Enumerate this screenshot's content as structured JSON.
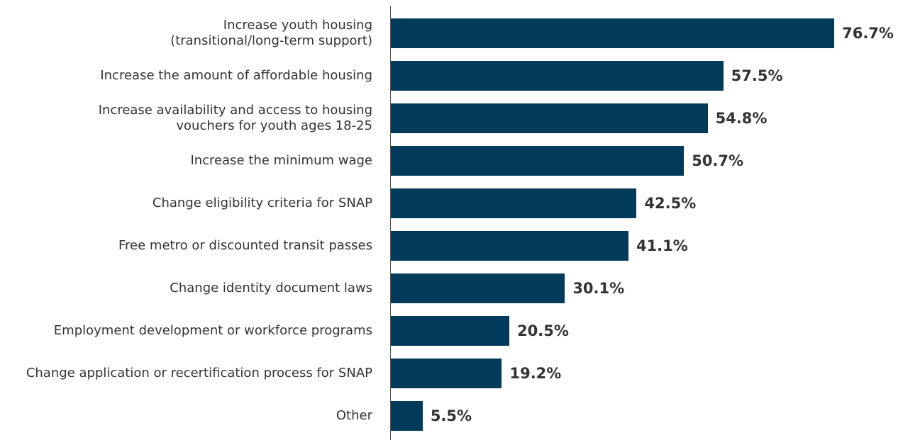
{
  "chart_data": {
    "type": "bar",
    "orientation": "horizontal",
    "color": "#023a5c",
    "categories": [
      "Increase youth housing\n(transitional/long-term support)",
      "Increase the amount of affordable housing",
      "Increase availability and access to housing\nvouchers for youth ages 18-25",
      "Increase the minimum wage",
      "Change eligibility criteria for SNAP",
      "Free metro or discounted transit passes",
      "Change identity document laws",
      "Employment development or workforce programs",
      "Change application or recertification process for SNAP",
      "Other"
    ],
    "values": [
      76.7,
      57.5,
      54.8,
      50.7,
      42.5,
      41.1,
      30.1,
      20.5,
      19.2,
      5.5
    ],
    "value_labels": [
      "76.7%",
      "57.5%",
      "54.8%",
      "50.7%",
      "42.5%",
      "41.1%",
      "30.1%",
      "20.5%",
      "19.2%",
      "5.5%"
    ]
  }
}
